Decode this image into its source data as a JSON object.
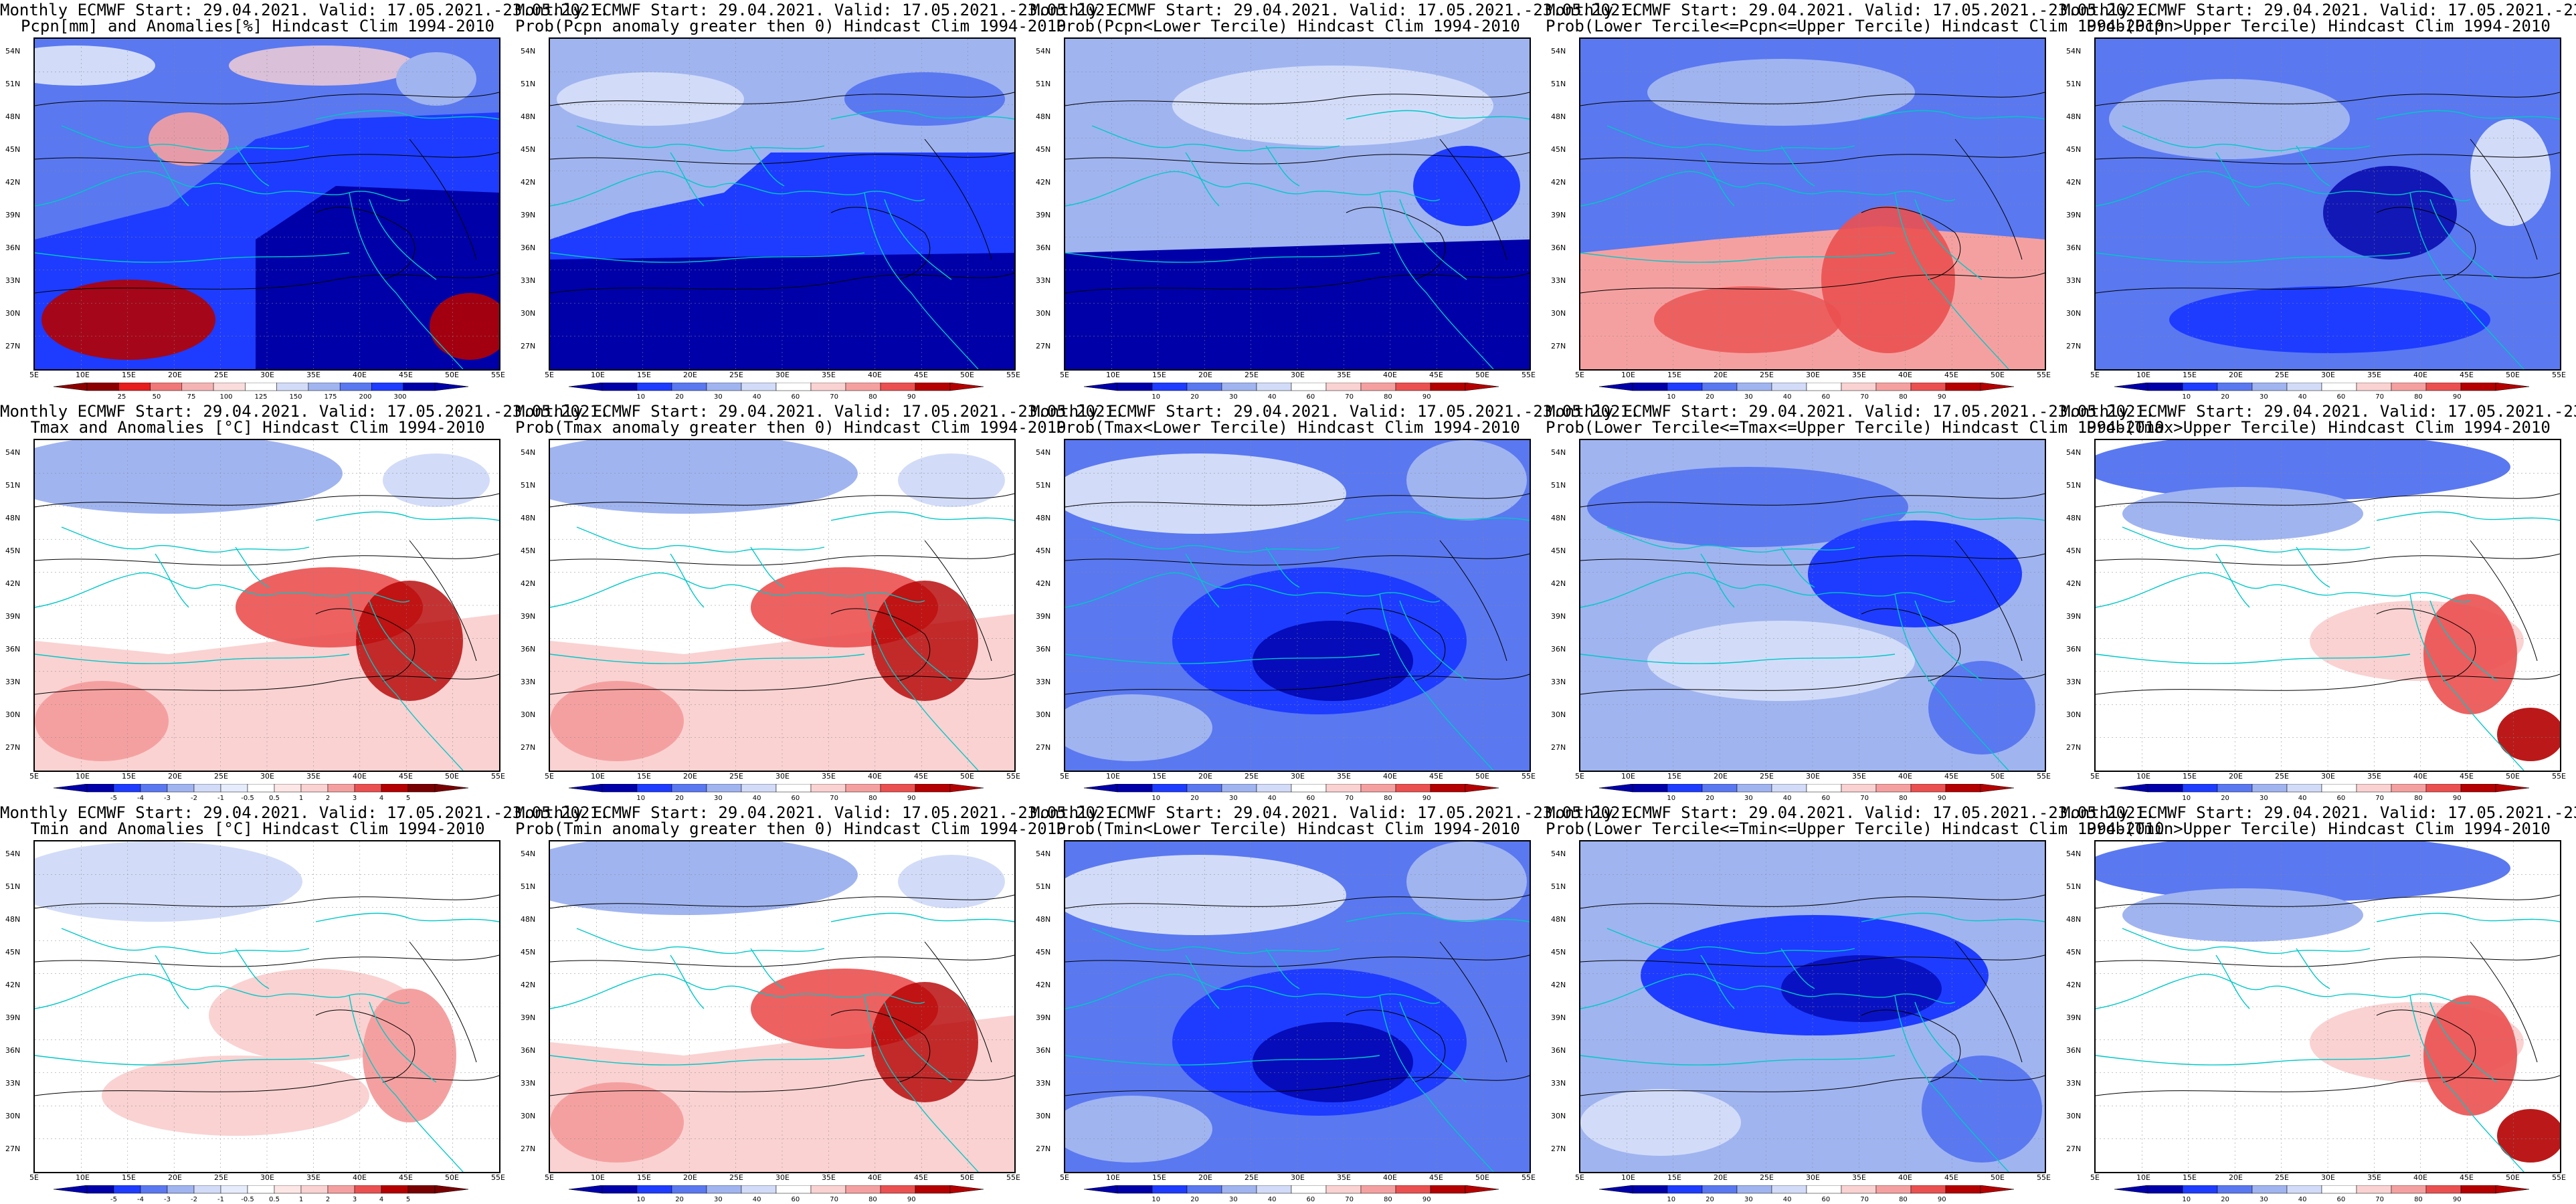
{
  "source_line": "Monthly ECMWF Start: 29.04.2021. Valid: 17.05.2021.-23.05.2021.",
  "lat_labels": [
    "54N",
    "51N",
    "48N",
    "45N",
    "42N",
    "39N",
    "36N",
    "33N",
    "30N",
    "27N"
  ],
  "lon_labels": [
    "5E",
    "10E",
    "15E",
    "20E",
    "25E",
    "30E",
    "35E",
    "40E",
    "45E",
    "50E",
    "55E"
  ],
  "colors": {
    "deep_blue": "#0000a8",
    "blue": "#1e3cff",
    "mid_blue": "#5a78f0",
    "light_blue": "#a0b4f0",
    "pale_blue": "#d2dcf8",
    "white": "#ffffff",
    "pale_red": "#fad2d2",
    "light_red": "#f5a0a0",
    "red": "#eb5050",
    "dark_red": "#b40000",
    "coast": "#00c8c8",
    "contour": "#000000"
  },
  "colorbars": {
    "precip": {
      "labels": [
        "25",
        "50",
        "75",
        "100",
        "125",
        "150",
        "175",
        "200",
        "300"
      ],
      "colors": [
        "#8c0000",
        "#e61e1e",
        "#f07878",
        "#f5b4b4",
        "#fadcdc",
        "#ffffff",
        "#d2dcf8",
        "#a0b4f0",
        "#5a78f0",
        "#1e3cff",
        "#0000a8"
      ]
    },
    "prob": {
      "labels": [
        "10",
        "20",
        "30",
        "40",
        "60",
        "70",
        "80",
        "90"
      ],
      "colors": [
        "#0000a8",
        "#1e3cff",
        "#5a78f0",
        "#a0b4f0",
        "#d2dcf8",
        "#ffffff",
        "#fad2d2",
        "#f5a0a0",
        "#eb5050",
        "#b40000"
      ]
    },
    "temp": {
      "labels": [
        "-5",
        "-4",
        "-3",
        "-2",
        "-1",
        "-0.5",
        "0.5",
        "1",
        "2",
        "3",
        "4",
        "5"
      ],
      "colors": [
        "#0000a8",
        "#1e3cff",
        "#5a78f0",
        "#a0b4f0",
        "#d2dcf8",
        "#e6ecfc",
        "#ffffff",
        "#fde6e6",
        "#fad2d2",
        "#f5a0a0",
        "#eb5050",
        "#b40000",
        "#780000"
      ]
    }
  },
  "panels": [
    {
      "title2": "Pcpn[mm] and Anomalies[%] Hindcast Clim 1994-2010",
      "bar": "precip",
      "pattern": "pcpn"
    },
    {
      "title2": "Prob(Pcpn anomaly greater then 0) Hindcast Clim 1994-2010",
      "bar": "prob",
      "pattern": "pcpn_pos"
    },
    {
      "title2": "Prob(Pcpn<Lower Tercile) Hindcast Clim 1994-2010",
      "bar": "prob",
      "pattern": "pcpn_low"
    },
    {
      "title2": "Prob(Lower Tercile<=Pcpn<=Upper Tercile) Hindcast Clim 1994-2010",
      "bar": "prob",
      "pattern": "pcpn_mid"
    },
    {
      "title2": "Prob(Pcpn>Upper Tercile) Hindcast Clim 1994-2010",
      "bar": "prob",
      "pattern": "pcpn_up"
    },
    {
      "title2": "Tmax and Anomalies [°C] Hindcast Clim 1994-2010",
      "bar": "temp",
      "pattern": "warm"
    },
    {
      "title2": "Prob(Tmax anomaly greater then 0) Hindcast Clim 1994-2010",
      "bar": "prob",
      "pattern": "warm"
    },
    {
      "title2": "Prob(Tmax<Lower Tercile) Hindcast Clim 1994-2010",
      "bar": "prob",
      "pattern": "cold"
    },
    {
      "title2": "Prob(Lower Tercile<=Tmax<=Upper Tercile) Hindcast Clim 1994-2010",
      "bar": "prob",
      "pattern": "mid"
    },
    {
      "title2": "Prob(Tmax>Upper Tercile) Hindcast Clim 1994-2010",
      "bar": "prob",
      "pattern": "warm_up"
    },
    {
      "title2": "Tmin and Anomalies [°C] Hindcast Clim 1994-2010",
      "bar": "temp",
      "pattern": "warm_light"
    },
    {
      "title2": "Prob(Tmin anomaly greater then 0) Hindcast Clim 1994-2010",
      "bar": "prob",
      "pattern": "warm"
    },
    {
      "title2": "Prob(Tmin<Lower Tercile) Hindcast Clim 1994-2010",
      "bar": "prob",
      "pattern": "cold"
    },
    {
      "title2": "Prob(Lower Tercile<=Tmin<=Upper Tercile) Hindcast Clim 1994-2010",
      "bar": "prob",
      "pattern": "cold_mid"
    },
    {
      "title2": "Prob(Tmin>Upper Tercile) Hindcast Clim 1994-2010",
      "bar": "prob",
      "pattern": "warm_up"
    }
  ]
}
